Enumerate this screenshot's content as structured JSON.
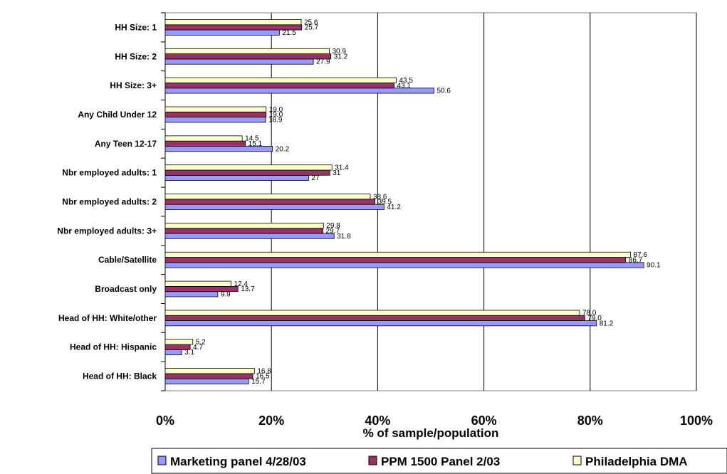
{
  "chart_data": {
    "type": "bar",
    "orientation": "horizontal",
    "categories": [
      "HH Size: 1",
      "HH Size: 2",
      "HH Size: 3+",
      "Any Child Under 12",
      "Any Teen 12-17",
      "Nbr employed adults: 1",
      "Nbr employed adults: 2",
      "Nbr employed adults: 3+",
      "Cable/Satellite",
      "Broadcast only",
      "Head of HH: White/other",
      "Head of HH: Hispanic",
      "Head of HH: Black"
    ],
    "series": [
      {
        "name": "Marketing panel 4/28/03",
        "color": "#9999ff",
        "values": [
          21.5,
          27.9,
          50.6,
          18.9,
          20.2,
          27,
          41.2,
          31.8,
          90.1,
          9.9,
          81.2,
          3.1,
          15.7
        ],
        "labels": [
          "21.5",
          "27.9",
          "50.6",
          "18.9",
          "20.2",
          "27",
          "41.2",
          "31.8",
          "90.1",
          "9.9",
          "81.2",
          "3.1",
          "15.7"
        ]
      },
      {
        "name": "PPM 1500 Panel 2/03",
        "color": "#993366",
        "values": [
          25.7,
          31.2,
          43.1,
          19.0,
          15.1,
          31,
          39.5,
          29.7,
          86.7,
          13.7,
          79.0,
          4.7,
          16.5
        ],
        "labels": [
          "25.7",
          "31.2",
          "43.1",
          "19.0",
          "15.1",
          "31",
          "39.5",
          "29.7",
          "86.7",
          "13.7",
          "79.0",
          "4.7",
          "16.5"
        ]
      },
      {
        "name": "Philadelphia DMA",
        "color": "#ffffcc",
        "values": [
          25.6,
          30.9,
          43.5,
          19.0,
          14.5,
          31.4,
          38.6,
          29.8,
          87.6,
          12.4,
          78.0,
          5.2,
          16.8
        ],
        "labels": [
          "25.6",
          "30.9",
          "43.5",
          "19.0",
          "14.5",
          "31.4",
          "38.6",
          "29.8",
          "87.6",
          "12.4",
          "78.0",
          "5.2",
          "16.8"
        ]
      }
    ],
    "x_ticks": [
      "0%",
      "20%",
      "40%",
      "60%",
      "80%",
      "100%"
    ],
    "xlim": [
      0,
      100
    ],
    "xlabel": "% of sample/population",
    "grid": true,
    "legend_position": "bottom"
  }
}
